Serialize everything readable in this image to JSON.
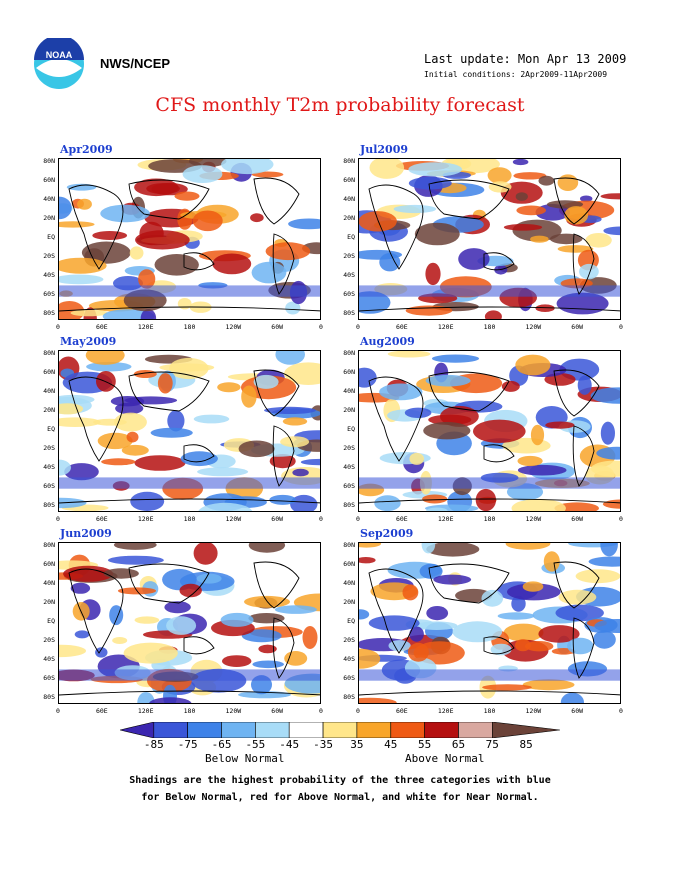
{
  "header": {
    "org": "NWS/NCEP",
    "last_update": "Last update: Mon Apr 13 2009",
    "initial_conditions": "Initial conditions: 2Apr2009-11Apr2009",
    "logo_text": "NOAA"
  },
  "title": "CFS monthly T2m probability forecast",
  "axes": {
    "lat_labels": [
      "80N",
      "60N",
      "40N",
      "20N",
      "EQ",
      "20S",
      "40S",
      "60S",
      "80S"
    ],
    "lon_labels": [
      "0",
      "60E",
      "120E",
      "180",
      "120W",
      "60W",
      "0"
    ]
  },
  "panels": [
    {
      "label": "Apr2009",
      "pattern": "warm-heavy"
    },
    {
      "label": "Jul2009",
      "pattern": "mixed-warm"
    },
    {
      "label": "May2009",
      "pattern": "mixed"
    },
    {
      "label": "Aug2009",
      "pattern": "mixed-cool"
    },
    {
      "label": "Jun2009",
      "pattern": "mixed"
    },
    {
      "label": "Sep2009",
      "pattern": "mixed-cool"
    }
  ],
  "colorbar": {
    "labels": [
      "-85",
      "-75",
      "-65",
      "-55",
      "-45",
      "-35",
      "35",
      "45",
      "55",
      "65",
      "75",
      "85"
    ],
    "colors": [
      "#3b26b0",
      "#3a56d8",
      "#3e82e8",
      "#6fb4f2",
      "#a8dcf7",
      "#ffffff",
      "#ffe68a",
      "#f8a52a",
      "#ef5a14",
      "#b51010",
      "#d9a8a0",
      "#6b4238"
    ],
    "below_label": "Below Normal",
    "above_label": "Above Normal"
  },
  "note": {
    "line1": "Shadings are the highest probability of the three categories with blue",
    "line2": "for Below Normal, red for Above Normal, and white for Near Normal."
  }
}
